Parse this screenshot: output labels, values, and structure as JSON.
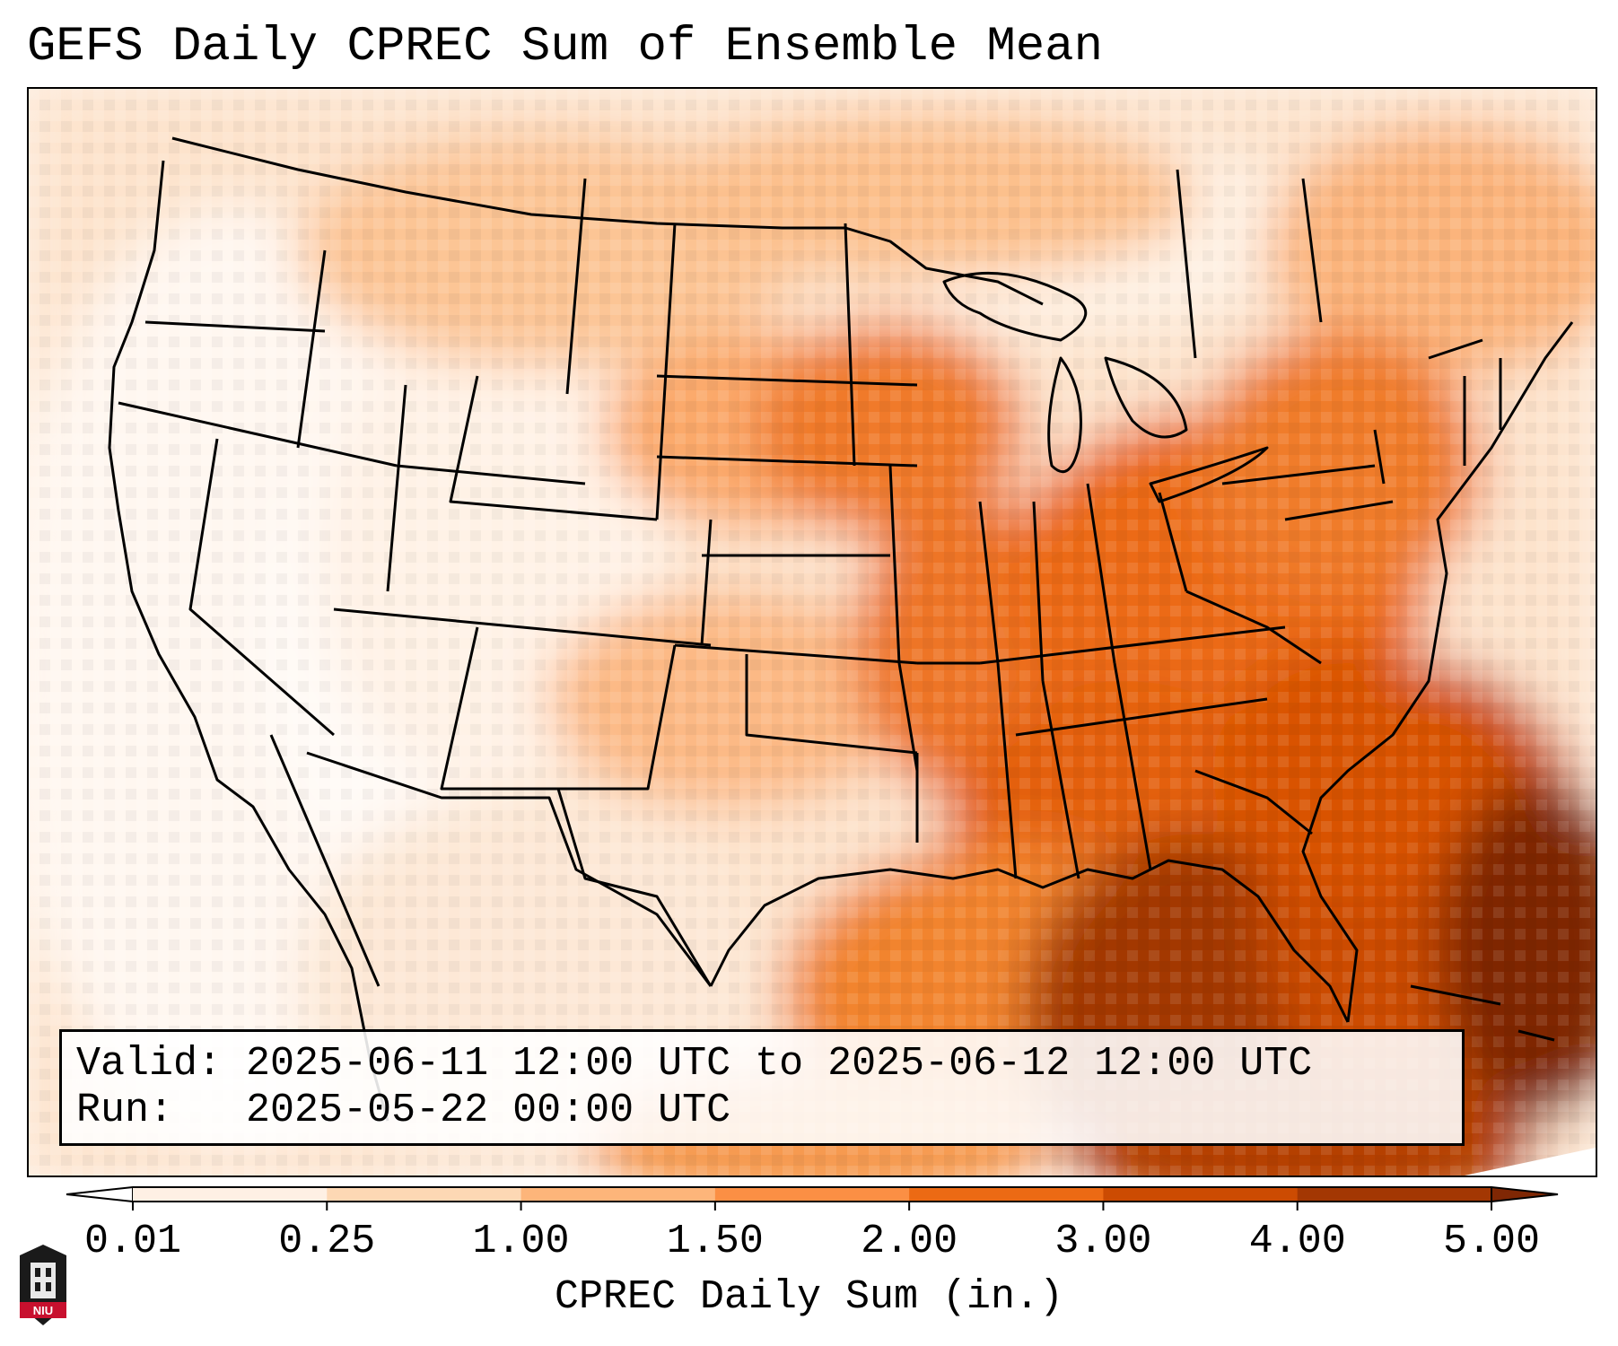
{
  "title": "GEFS Daily CPREC Sum of Ensemble Mean",
  "info": {
    "valid_label": "Valid:",
    "valid_value": "2025-06-11 12:00 UTC to 2025-06-12 12:00 UTC",
    "run_label": "Run:",
    "run_value": "2025-05-22 00:00 UTC"
  },
  "colorbar": {
    "label": "CPREC Daily Sum (in.)",
    "ticks": [
      "0.01",
      "0.25",
      "1.00",
      "1.50",
      "2.00",
      "3.00",
      "4.00",
      "5.00"
    ],
    "colors": [
      "#fef0e4",
      "#fdd8b4",
      "#fdb57a",
      "#fb8f44",
      "#ec6a14",
      "#cc4b02",
      "#a33703",
      "#7f2704"
    ],
    "extend": "both"
  },
  "map": {
    "projection": "Lambert Conformal (CONUS)",
    "field": "Convective precipitation daily sum, ensemble mean",
    "heaviest_region": "Gulf of Mexico / Florida / southeastern US coast",
    "lightest_region": "Desert Southwest / California / Nevada"
  },
  "logo": {
    "name": "niu-logo",
    "text": "NIU"
  }
}
